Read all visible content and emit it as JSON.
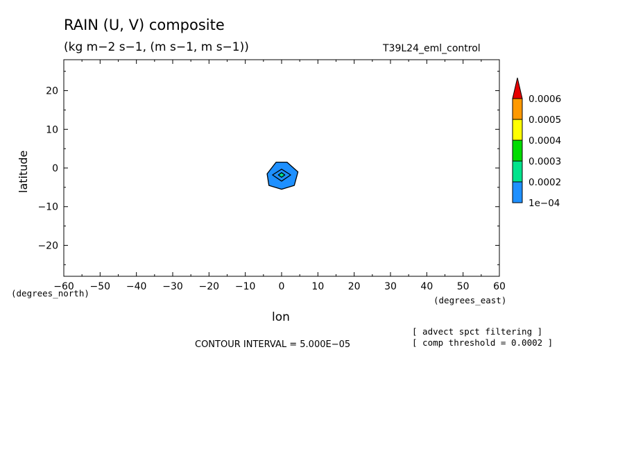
{
  "header": {
    "title": "RAIN (U, V) composite",
    "subtitle": "(kg m−2 s−1, (m s−1, m s−1))",
    "run_name": "T39L24_eml_control"
  },
  "footer": {
    "contour_interval": "CONTOUR INTERVAL = 5.000E−05",
    "note_1": "[ advect spct filtering ]",
    "note_2": "[ comp threshold = 0.0002 ]"
  },
  "chart_data": {
    "type": "contour",
    "xlabel": "lon",
    "ylabel": "latitude",
    "x_units": "(degrees_east)",
    "y_units": "(degrees_north)",
    "xlim": [
      -60,
      60
    ],
    "ylim": [
      -28,
      28
    ],
    "x_ticks": [
      -60,
      -50,
      -40,
      -30,
      -20,
      -10,
      0,
      10,
      20,
      30,
      40,
      50,
      60
    ],
    "y_ticks": [
      -20,
      -10,
      0,
      10,
      20
    ],
    "x_tick_labels": [
      "−60",
      "−50",
      "−40",
      "−30",
      "−20",
      "−10",
      "0",
      "10",
      "20",
      "30",
      "40",
      "50",
      "60"
    ],
    "y_tick_labels": [
      "−20",
      "−10",
      "0",
      "10",
      "20"
    ],
    "contour_levels": [
      0.0001,
      0.00015,
      0.0002
    ],
    "filled_regions": [
      {
        "level": 0.0001,
        "color": "#1e90ff",
        "polygon": [
          [
            -1.5,
            1.5
          ],
          [
            1.5,
            1.5
          ],
          [
            4.5,
            -1.0
          ],
          [
            3.5,
            -4.5
          ],
          [
            0.0,
            -5.5
          ],
          [
            -3.5,
            -4.5
          ],
          [
            -4.0,
            -1.5
          ]
        ]
      },
      {
        "level": 0.00015,
        "color": "#1e90ff",
        "polygon": [
          [
            0.0,
            -0.3
          ],
          [
            2.5,
            -1.8
          ],
          [
            0.0,
            -3.4
          ],
          [
            -2.5,
            -1.8
          ]
        ]
      },
      {
        "level": 0.0002,
        "color": "#00e38c",
        "polygon": [
          [
            0.0,
            -1.2
          ],
          [
            0.9,
            -1.8
          ],
          [
            0.0,
            -2.4
          ],
          [
            -0.9,
            -1.8
          ]
        ]
      }
    ],
    "colorbar": {
      "labels": [
        "1e−04",
        "0.0002",
        "0.0003",
        "0.0004",
        "0.0005",
        "0.0006"
      ],
      "colors": [
        "#1e90ff",
        "#00e38c",
        "#00dc00",
        "#ffff00",
        "#ff9900",
        "#e60000"
      ],
      "extend": "max"
    }
  }
}
